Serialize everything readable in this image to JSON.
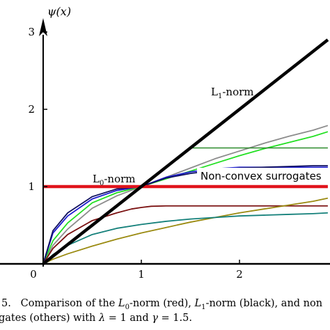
{
  "chart_data": {
    "type": "line",
    "ylabel": "ψ(x)",
    "xlim": [
      0,
      2.9
    ],
    "ylim": [
      0,
      3.1
    ],
    "xticks": [
      {
        "value": 0,
        "label": "0"
      },
      {
        "value": 1,
        "label": "1"
      },
      {
        "value": 2,
        "label": "2"
      }
    ],
    "yticks": [
      {
        "value": 1,
        "label": "1"
      },
      {
        "value": 2,
        "label": "2"
      },
      {
        "value": 3,
        "label": "3"
      }
    ],
    "grid": false,
    "annotations": {
      "l1": "L1-norm",
      "l0": "L0-norm",
      "surrogates": "Non-convex surrogates"
    },
    "series": [
      {
        "id": "l0",
        "name": "L0-norm",
        "color": "#e0141c",
        "width": 4.5,
        "x": [
          0,
          2.9
        ],
        "y": [
          1,
          1
        ]
      },
      {
        "id": "l1",
        "name": "L1-norm",
        "color": "#000000",
        "width": 4.5,
        "x": [
          0,
          2.9
        ],
        "y": [
          0,
          2.9
        ]
      },
      {
        "id": "gray",
        "color": "#8c8c8c",
        "width": 1.8,
        "x": [
          0,
          0.1,
          0.25,
          0.5,
          0.75,
          1.0,
          1.25,
          1.5,
          1.75,
          2.0,
          2.25,
          2.5,
          2.75,
          2.9
        ],
        "y": [
          0,
          0.24,
          0.45,
          0.72,
          0.88,
          1.0,
          1.12,
          1.24,
          1.36,
          1.46,
          1.56,
          1.65,
          1.73,
          1.79
        ]
      },
      {
        "id": "green",
        "color": "#22e022",
        "width": 1.8,
        "x": [
          0,
          0.1,
          0.25,
          0.5,
          0.75,
          1.0,
          1.25,
          1.5,
          1.75,
          2.0,
          2.25,
          2.5,
          2.75,
          2.9
        ],
        "y": [
          0,
          0.3,
          0.53,
          0.79,
          0.92,
          1.0,
          1.1,
          1.2,
          1.3,
          1.4,
          1.49,
          1.57,
          1.65,
          1.71
        ]
      },
      {
        "id": "blue",
        "color": "#1c1ccf",
        "width": 1.8,
        "x": [
          0,
          0.1,
          0.25,
          0.5,
          0.75,
          1.0,
          1.25,
          1.5,
          1.75,
          2.0,
          2.25,
          2.5,
          2.75,
          2.9
        ],
        "y": [
          0,
          0.4,
          0.62,
          0.84,
          0.95,
          1.0,
          1.12,
          1.19,
          1.23,
          1.25,
          1.25,
          1.25,
          1.25,
          1.25
        ]
      },
      {
        "id": "navy",
        "color": "#101060",
        "width": 1.8,
        "x": [
          0,
          0.1,
          0.25,
          0.5,
          0.75,
          1.0,
          1.25,
          1.5,
          1.75,
          2.0,
          2.25,
          2.5,
          2.75,
          2.9
        ],
        "y": [
          0,
          0.43,
          0.66,
          0.87,
          0.97,
          1.0,
          1.11,
          1.17,
          1.21,
          1.24,
          1.25,
          1.26,
          1.27,
          1.27
        ]
      },
      {
        "id": "darkgreen",
        "color": "#2a8a2a",
        "width": 1.6,
        "x": [
          1.5,
          2.9
        ],
        "y": [
          1.5,
          1.5
        ]
      },
      {
        "id": "darkred",
        "color": "#7a1010",
        "width": 1.8,
        "x": [
          0,
          0.1,
          0.25,
          0.5,
          0.75,
          0.9,
          1.0,
          1.1,
          1.25,
          1.5,
          2.0,
          2.5,
          2.9
        ],
        "y": [
          0,
          0.2,
          0.38,
          0.56,
          0.66,
          0.71,
          0.73,
          0.745,
          0.75,
          0.75,
          0.75,
          0.75,
          0.75
        ]
      },
      {
        "id": "olive",
        "color": "#9a8a10",
        "width": 1.8,
        "x": [
          0,
          0.1,
          0.25,
          0.5,
          0.75,
          1.0,
          1.25,
          1.5,
          1.75,
          2.0,
          2.25,
          2.5,
          2.75,
          2.9
        ],
        "y": [
          0,
          0.06,
          0.13,
          0.23,
          0.32,
          0.4,
          0.47,
          0.54,
          0.6,
          0.66,
          0.71,
          0.76,
          0.81,
          0.85
        ]
      },
      {
        "id": "teal",
        "color": "#14807a",
        "width": 1.8,
        "x": [
          0,
          0.1,
          0.25,
          0.5,
          0.75,
          1.0,
          1.25,
          1.5,
          1.75,
          2.0,
          2.25,
          2.5,
          2.75,
          2.9
        ],
        "y": [
          0,
          0.12,
          0.24,
          0.38,
          0.46,
          0.51,
          0.55,
          0.58,
          0.6,
          0.62,
          0.63,
          0.64,
          0.65,
          0.66
        ]
      }
    ]
  },
  "caption": {
    "line1": "5.   Comparison of the L0-norm (red), L1-norm (black), and non",
    "line2": "gates (others) with λ = 1 and γ = 1.5."
  }
}
